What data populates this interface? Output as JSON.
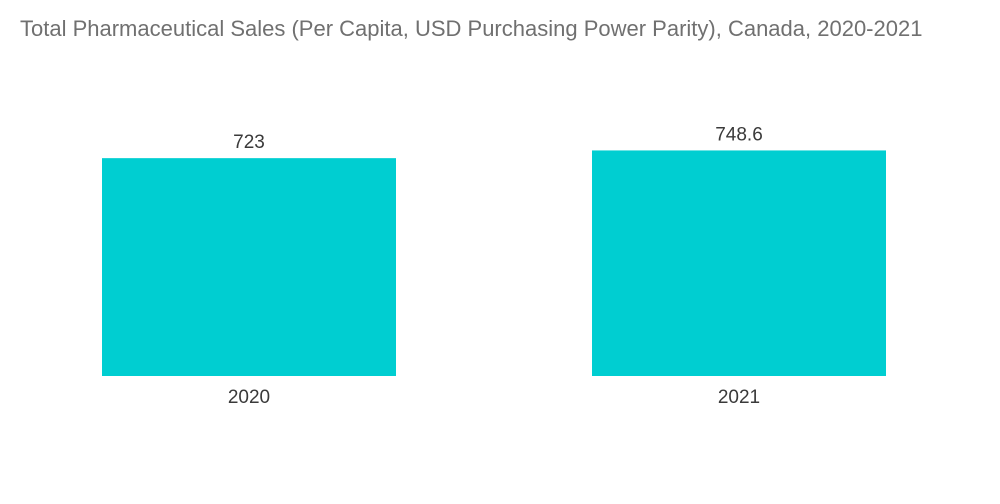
{
  "chart_data": {
    "type": "bar",
    "title": "Total Pharmaceutical Sales (Per Capita, USD Purchasing Power Parity), Canada, 2020-2021",
    "categories": [
      "2020",
      "2021"
    ],
    "values": [
      723,
      748.6
    ],
    "data_labels": [
      "723",
      "748.6"
    ],
    "xlabel": "",
    "ylabel": "",
    "ylim": [
      0,
      760
    ],
    "grid": false,
    "legend": "none",
    "bar_color": "#00CED1"
  }
}
